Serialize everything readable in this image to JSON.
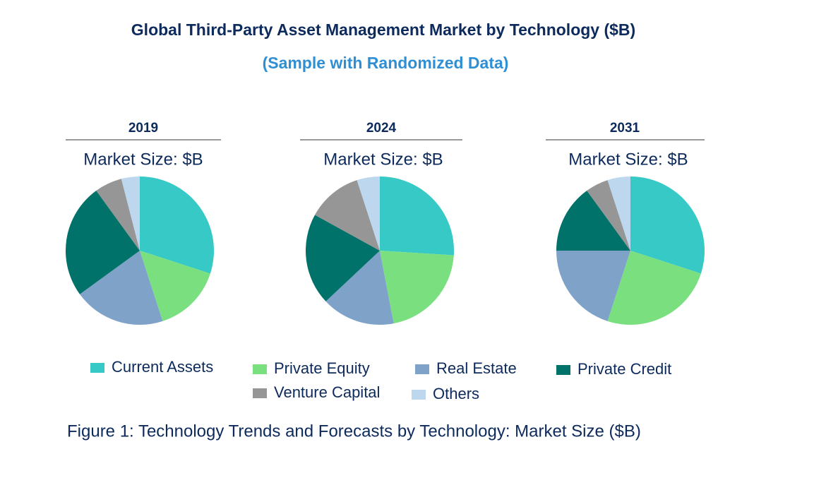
{
  "header": {
    "title": "Global Third-Party Asset Management Market by Technology ($B)",
    "subtitle": "(Sample with Randomized Data)"
  },
  "chart_data": [
    {
      "type": "pie",
      "title": "2019",
      "subtitle": "Market Size: $B",
      "categories": [
        "Current Assets",
        "Private Equity",
        "Real Estate",
        "Private Credit",
        "Venture Capital",
        "Others"
      ],
      "values": [
        30,
        15,
        20,
        25,
        6,
        4
      ],
      "colors": [
        "#36c9c6",
        "#7ae07f",
        "#7fa3c8",
        "#00726a",
        "#969696",
        "#bcd7ee"
      ]
    },
    {
      "type": "pie",
      "title": "2024",
      "subtitle": "Market Size: $B",
      "categories": [
        "Current Assets",
        "Private Equity",
        "Real Estate",
        "Private Credit",
        "Venture Capital",
        "Others"
      ],
      "values": [
        26,
        21,
        16,
        20,
        12,
        5
      ],
      "colors": [
        "#36c9c6",
        "#7ae07f",
        "#7fa3c8",
        "#00726a",
        "#969696",
        "#bcd7ee"
      ]
    },
    {
      "type": "pie",
      "title": "2031",
      "subtitle": "Market Size: $B",
      "categories": [
        "Current Assets",
        "Private Equity",
        "Real Estate",
        "Private Credit",
        "Venture Capital",
        "Others"
      ],
      "values": [
        30,
        25,
        20,
        15,
        5,
        5
      ],
      "colors": [
        "#36c9c6",
        "#7ae07f",
        "#7fa3c8",
        "#00726a",
        "#969696",
        "#bcd7ee"
      ]
    }
  ],
  "caption": "Figure 1: Technology Trends and Forecasts by Technology: Market Size ($B)"
}
